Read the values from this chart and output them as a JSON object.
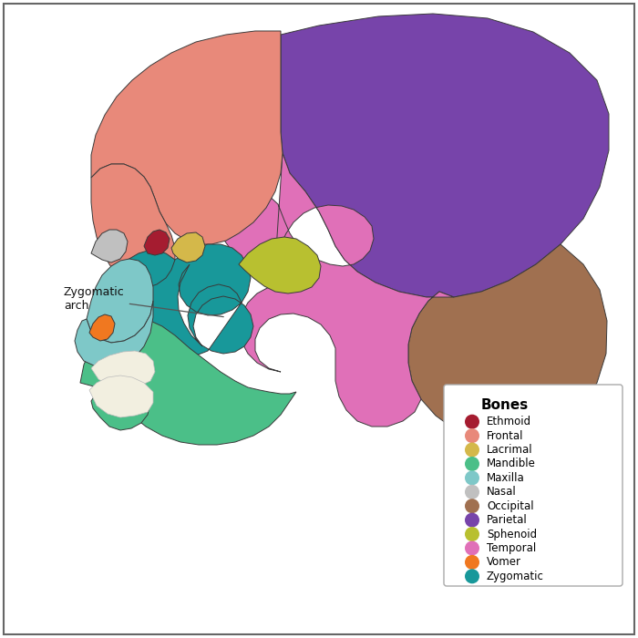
{
  "legend_title": "Bones",
  "legend_items": [
    {
      "label": "Ethmoid",
      "color": "#A51C30"
    },
    {
      "label": "Frontal",
      "color": "#E8897A"
    },
    {
      "label": "Lacrimal",
      "color": "#D4B84A"
    },
    {
      "label": "Mandible",
      "color": "#4BBF88"
    },
    {
      "label": "Maxilla",
      "color": "#7EC8C8"
    },
    {
      "label": "Nasal",
      "color": "#C0C0C0"
    },
    {
      "label": "Occipital",
      "color": "#A07050"
    },
    {
      "label": "Parietal",
      "color": "#7744AA"
    },
    {
      "label": "Sphenoid",
      "color": "#B8C030"
    },
    {
      "label": "Temporal",
      "color": "#E070B8"
    },
    {
      "label": "Vomer",
      "color": "#F07820"
    },
    {
      "label": "Zygomatic",
      "color": "#18989A"
    }
  ],
  "annotation_text": "Zygomatic\narch",
  "border_color": "#666666",
  "background_color": "#ffffff"
}
